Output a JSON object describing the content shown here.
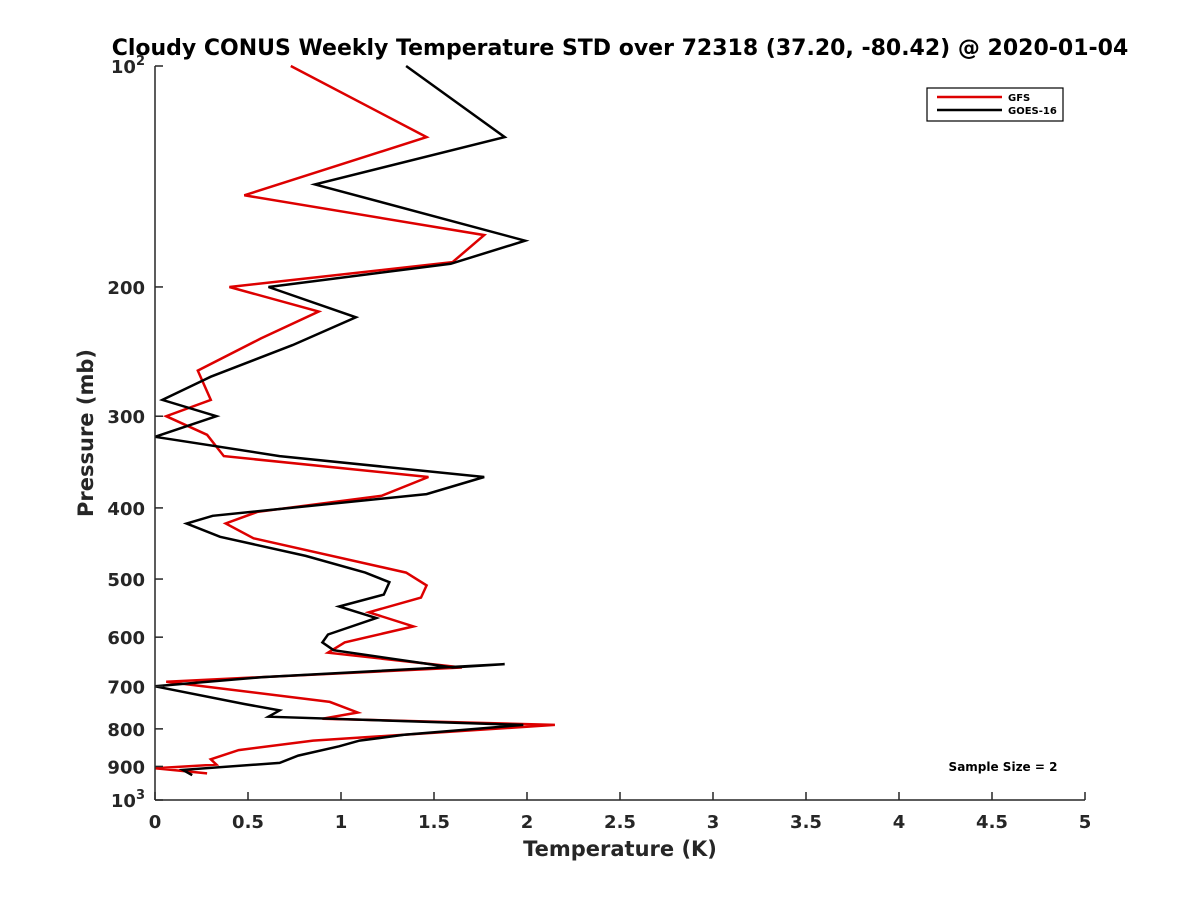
{
  "chart_data": {
    "type": "line",
    "title": "Cloudy CONUS Weekly Temperature STD over 72318 (37.20, -80.42) @ 2020-01-04",
    "xlabel": "Temperature (K)",
    "ylabel": "Pressure (mb)",
    "xlim": [
      0,
      5
    ],
    "ylim": [
      100,
      1000
    ],
    "y_scale": "log",
    "y_reversed": true,
    "x_ticks": [
      0,
      0.5,
      1,
      1.5,
      2,
      2.5,
      3,
      3.5,
      4,
      4.5,
      5
    ],
    "x_tick_labels": [
      "0",
      "0.5",
      "1",
      "1.5",
      "2",
      "2.5",
      "3",
      "3.5",
      "4",
      "4.5",
      "5"
    ],
    "y_ticks": [
      200,
      300,
      400,
      500,
      600,
      700,
      800,
      900
    ],
    "y_tick_labels": [
      "200",
      "300",
      "400",
      "500",
      "600",
      "700",
      "800",
      "900"
    ],
    "y_end_labels": [
      {
        "value": 100,
        "base": "10",
        "exp": "2"
      },
      {
        "value": 1000,
        "base": "10",
        "exp": "3"
      }
    ],
    "grid": false,
    "legend_position": "top-right",
    "annotation": "Sample Size = 2",
    "series": [
      {
        "name": "GFS",
        "color": "#dd0000",
        "points": [
          [
            0.73,
            100
          ],
          [
            1.46,
            125
          ],
          [
            0.48,
            150
          ],
          [
            1.77,
            170
          ],
          [
            1.6,
            185
          ],
          [
            0.4,
            200
          ],
          [
            0.88,
            216
          ],
          [
            0.57,
            235
          ],
          [
            0.23,
            260
          ],
          [
            0.3,
            285
          ],
          [
            0.06,
            300
          ],
          [
            0.28,
            318
          ],
          [
            0.37,
            340
          ],
          [
            1.47,
            363
          ],
          [
            1.22,
            385
          ],
          [
            0.55,
            405
          ],
          [
            0.38,
            420
          ],
          [
            0.53,
            440
          ],
          [
            1.35,
            490
          ],
          [
            1.46,
            510
          ],
          [
            1.43,
            530
          ],
          [
            1.15,
            555
          ],
          [
            1.39,
            580
          ],
          [
            1.02,
            610
          ],
          [
            0.93,
            630
          ],
          [
            1.65,
            660
          ],
          [
            0.06,
            690
          ],
          [
            0.94,
            735
          ],
          [
            1.09,
            760
          ],
          [
            0.9,
            775
          ],
          [
            2.15,
            790
          ],
          [
            0.85,
            830
          ],
          [
            0.45,
            855
          ],
          [
            0.3,
            880
          ],
          [
            0.33,
            895
          ],
          [
            0.0,
            905
          ],
          [
            0.28,
            920
          ]
        ]
      },
      {
        "name": "GOES-16",
        "color": "#000000",
        "points": [
          [
            1.35,
            100
          ],
          [
            1.88,
            125
          ],
          [
            0.86,
            145
          ],
          [
            1.99,
            173
          ],
          [
            1.59,
            186
          ],
          [
            0.61,
            200
          ],
          [
            1.08,
            220
          ],
          [
            0.74,
            240
          ],
          [
            0.3,
            265
          ],
          [
            0.04,
            285
          ],
          [
            0.33,
            300
          ],
          [
            0.0,
            320
          ],
          [
            0.67,
            340
          ],
          [
            1.77,
            363
          ],
          [
            1.46,
            383
          ],
          [
            0.31,
            410
          ],
          [
            0.17,
            420
          ],
          [
            0.35,
            438
          ],
          [
            0.81,
            465
          ],
          [
            1.13,
            490
          ],
          [
            1.26,
            505
          ],
          [
            1.23,
            525
          ],
          [
            0.99,
            545
          ],
          [
            1.19,
            565
          ],
          [
            0.93,
            595
          ],
          [
            0.9,
            610
          ],
          [
            0.96,
            625
          ],
          [
            1.6,
            660
          ],
          [
            1.88,
            653
          ],
          [
            0.58,
            680
          ],
          [
            0.0,
            700
          ],
          [
            0.48,
            740
          ],
          [
            0.67,
            755
          ],
          [
            0.61,
            770
          ],
          [
            1.98,
            790
          ],
          [
            1.34,
            815
          ],
          [
            1.1,
            830
          ],
          [
            0.99,
            845
          ],
          [
            0.77,
            870
          ],
          [
            0.67,
            890
          ],
          [
            0.15,
            910
          ],
          [
            0.2,
            925
          ]
        ]
      }
    ]
  }
}
